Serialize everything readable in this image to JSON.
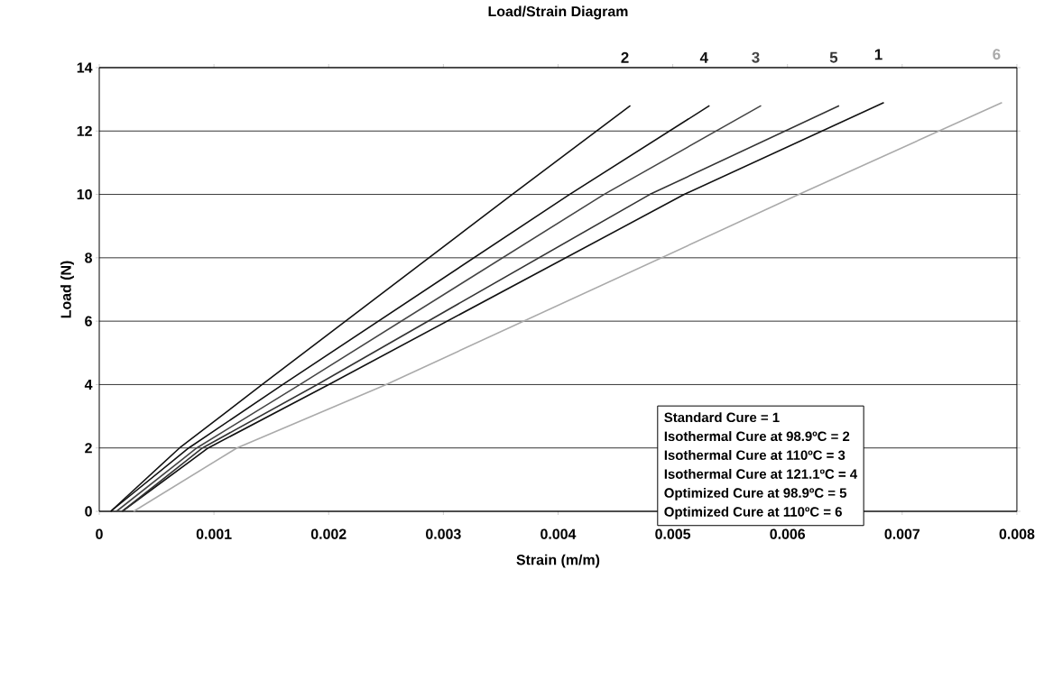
{
  "chart_data": {
    "type": "line",
    "title": "Load/Strain Diagram",
    "xlabel": "Strain (m/m)",
    "ylabel": "Load (N)",
    "xlim": [
      0,
      0.008
    ],
    "xticks": [
      0,
      0.001,
      0.002,
      0.003,
      0.004,
      0.005,
      0.006,
      0.007,
      0.008
    ],
    "ylim": [
      0,
      14
    ],
    "yticks": [
      0,
      2,
      4,
      6,
      8,
      10,
      12,
      14
    ],
    "grid": "y",
    "marker": "none",
    "line_style": "solid",
    "series": [
      {
        "name": "1",
        "color": "#111111",
        "x": [
          0.0002,
          0.00095,
          0.002,
          0.0051,
          0.00684
        ],
        "values": [
          0,
          2,
          4,
          10,
          12.9
        ]
      },
      {
        "name": "2",
        "color": "#111111",
        "x": [
          0.0001,
          0.0007,
          0.00142,
          0.0036,
          0.00463
        ],
        "values": [
          0,
          2,
          4,
          10,
          12.8
        ]
      },
      {
        "name": "3",
        "color": "#444444",
        "x": [
          0.00015,
          0.00085,
          0.00175,
          0.0044,
          0.00577
        ],
        "values": [
          0,
          2,
          4,
          10,
          12.8
        ]
      },
      {
        "name": "4",
        "color": "#111111",
        "x": [
          0.0001,
          0.00078,
          0.0016,
          0.0041,
          0.00532
        ],
        "values": [
          0,
          2,
          4,
          10,
          12.8
        ]
      },
      {
        "name": "5",
        "color": "#333333",
        "x": [
          0.0002,
          0.0009,
          0.0019,
          0.0048,
          0.00645
        ],
        "values": [
          0,
          2,
          4,
          10,
          12.8
        ]
      },
      {
        "name": "6",
        "color": "#aaaaaa",
        "x": [
          0.0003,
          0.0012,
          0.0025,
          0.0061,
          0.00787
        ],
        "values": [
          0,
          2,
          4,
          10,
          12.9
        ]
      }
    ],
    "annotations": [
      "Standard Cure = 1",
      "Isothermal Cure at 98.9ºC = 2",
      "Isothermal Cure at 110ºC  = 3",
      "Isothermal Cure at 121.1ºC = 4",
      "Optimized Cure at 98.9ºC  = 5",
      "Optimized Cure at 110ºC  = 6"
    ]
  }
}
